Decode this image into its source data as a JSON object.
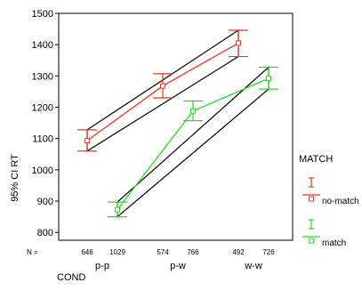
{
  "chart_data": {
    "type": "line",
    "title": "",
    "xlabel": "COND",
    "ylabel": "95% CI RT",
    "ylim": [
      800,
      1500
    ],
    "yticks": [
      800,
      900,
      1000,
      1100,
      1200,
      1300,
      1400,
      1500
    ],
    "categories": [
      "p-p",
      "p-w",
      "w-w"
    ],
    "n_prefix": "N =",
    "n_counts": [
      {
        "group": "no-match",
        "cond": "p-p",
        "n": "646"
      },
      {
        "group": "match",
        "cond": "p-p",
        "n": "1029"
      },
      {
        "group": "no-match",
        "cond": "p-w",
        "n": "574"
      },
      {
        "group": "match",
        "cond": "p-w",
        "n": "766"
      },
      {
        "group": "no-match",
        "cond": "w-w",
        "n": "492"
      },
      {
        "group": "match",
        "cond": "w-w",
        "n": "726"
      }
    ],
    "legend": {
      "title": "MATCH",
      "placement": "right"
    },
    "series": [
      {
        "name": "no-match",
        "color": "#e8361f",
        "points": [
          {
            "cond": "p-p",
            "mean": 1093,
            "lo": 1060,
            "hi": 1128
          },
          {
            "cond": "p-w",
            "mean": 1268,
            "lo": 1230,
            "hi": 1307
          },
          {
            "cond": "w-w",
            "mean": 1405,
            "lo": 1362,
            "hi": 1446
          }
        ]
      },
      {
        "name": "match",
        "color": "#22dd22",
        "points": [
          {
            "cond": "p-p",
            "mean": 873,
            "lo": 850,
            "hi": 897
          },
          {
            "cond": "p-w",
            "mean": 1188,
            "lo": 1157,
            "hi": 1220
          },
          {
            "cond": "w-w",
            "mean": 1292,
            "lo": 1258,
            "hi": 1328
          }
        ]
      }
    ],
    "envelope_color": "#000000"
  }
}
